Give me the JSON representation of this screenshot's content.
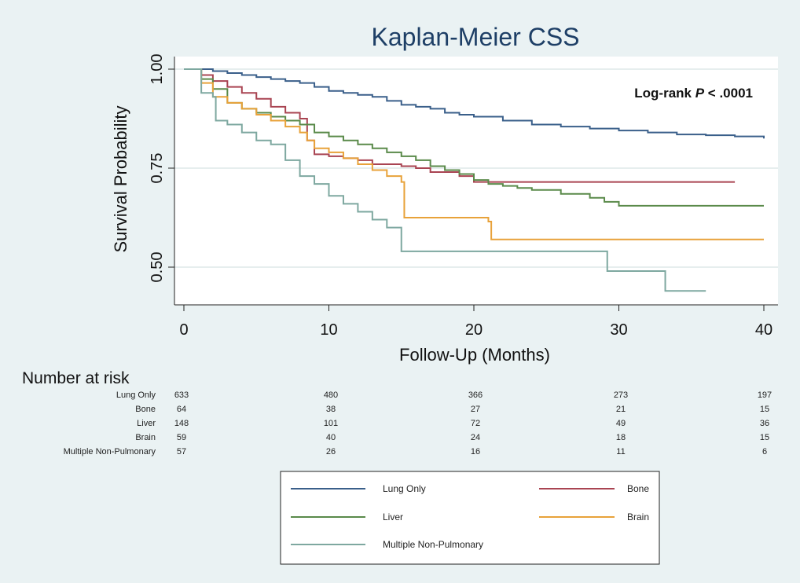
{
  "chart_data": {
    "type": "line",
    "title": "Kaplan-Meier CSS",
    "xlabel": "Follow-Up (Months)",
    "ylabel": "Survival Probability",
    "xlim": [
      0,
      40
    ],
    "ylim": [
      0.45,
      1.0
    ],
    "xticks": [
      "0",
      "10",
      "20",
      "30",
      "40"
    ],
    "yticks": [
      "0.50",
      "0.75",
      "1.00"
    ],
    "annotation": {
      "prefix": "Log-rank ",
      "italic": "P",
      "suffix": " < .0001"
    },
    "grid": "horizontal",
    "series": [
      {
        "name": "Lung Only",
        "color": "#3a5f8a",
        "points": [
          [
            0,
            1.0
          ],
          [
            1,
            1.0
          ],
          [
            2,
            0.995
          ],
          [
            3,
            0.99
          ],
          [
            4,
            0.985
          ],
          [
            5,
            0.98
          ],
          [
            6,
            0.975
          ],
          [
            7,
            0.97
          ],
          [
            8,
            0.965
          ],
          [
            9,
            0.955
          ],
          [
            10,
            0.945
          ],
          [
            11,
            0.94
          ],
          [
            12,
            0.935
          ],
          [
            13,
            0.93
          ],
          [
            14,
            0.92
          ],
          [
            15,
            0.91
          ],
          [
            16,
            0.905
          ],
          [
            17,
            0.9
          ],
          [
            18,
            0.89
          ],
          [
            19,
            0.885
          ],
          [
            20,
            0.88
          ],
          [
            22,
            0.87
          ],
          [
            24,
            0.86
          ],
          [
            26,
            0.855
          ],
          [
            28,
            0.85
          ],
          [
            30,
            0.845
          ],
          [
            32,
            0.84
          ],
          [
            34,
            0.835
          ],
          [
            36,
            0.833
          ],
          [
            38,
            0.83
          ],
          [
            39,
            0.83
          ],
          [
            40,
            0.825
          ]
        ]
      },
      {
        "name": "Bone",
        "color": "#a94452",
        "points": [
          [
            0,
            1.0
          ],
          [
            1,
            1.0
          ],
          [
            1.2,
            0.985
          ],
          [
            2,
            0.97
          ],
          [
            3,
            0.955
          ],
          [
            4,
            0.94
          ],
          [
            5,
            0.925
          ],
          [
            6,
            0.905
          ],
          [
            7,
            0.89
          ],
          [
            8,
            0.875
          ],
          [
            8.5,
            0.82
          ],
          [
            9,
            0.785
          ],
          [
            10,
            0.78
          ],
          [
            11,
            0.775
          ],
          [
            12,
            0.77
          ],
          [
            13,
            0.76
          ],
          [
            15,
            0.755
          ],
          [
            16,
            0.75
          ],
          [
            17,
            0.74
          ],
          [
            19,
            0.73
          ],
          [
            20,
            0.715
          ],
          [
            25,
            0.715
          ],
          [
            38,
            0.715
          ]
        ]
      },
      {
        "name": "Liver",
        "color": "#5a8a4a",
        "points": [
          [
            0,
            1.0
          ],
          [
            1,
            1.0
          ],
          [
            1.2,
            0.975
          ],
          [
            2,
            0.95
          ],
          [
            3,
            0.915
          ],
          [
            4,
            0.9
          ],
          [
            5,
            0.89
          ],
          [
            6,
            0.88
          ],
          [
            7,
            0.87
          ],
          [
            8,
            0.86
          ],
          [
            9,
            0.84
          ],
          [
            10,
            0.83
          ],
          [
            11,
            0.82
          ],
          [
            12,
            0.81
          ],
          [
            13,
            0.8
          ],
          [
            14,
            0.79
          ],
          [
            15,
            0.78
          ],
          [
            16,
            0.77
          ],
          [
            17,
            0.755
          ],
          [
            18,
            0.745
          ],
          [
            19,
            0.735
          ],
          [
            20,
            0.72
          ],
          [
            21,
            0.71
          ],
          [
            22,
            0.705
          ],
          [
            23,
            0.7
          ],
          [
            24,
            0.695
          ],
          [
            26,
            0.685
          ],
          [
            28,
            0.675
          ],
          [
            29,
            0.665
          ],
          [
            30,
            0.655
          ],
          [
            40,
            0.655
          ]
        ]
      },
      {
        "name": "Brain",
        "color": "#e8a23a",
        "points": [
          [
            0,
            1.0
          ],
          [
            1,
            1.0
          ],
          [
            1.2,
            0.965
          ],
          [
            2,
            0.93
          ],
          [
            3,
            0.915
          ],
          [
            4,
            0.9
          ],
          [
            5,
            0.885
          ],
          [
            6,
            0.87
          ],
          [
            7,
            0.855
          ],
          [
            8,
            0.84
          ],
          [
            8.5,
            0.82
          ],
          [
            9,
            0.8
          ],
          [
            10,
            0.79
          ],
          [
            11,
            0.775
          ],
          [
            12,
            0.76
          ],
          [
            13,
            0.745
          ],
          [
            14,
            0.73
          ],
          [
            15,
            0.715
          ],
          [
            15.2,
            0.625
          ],
          [
            20,
            0.625
          ],
          [
            21,
            0.615
          ],
          [
            21.2,
            0.57
          ],
          [
            30,
            0.57
          ],
          [
            40,
            0.57
          ]
        ]
      },
      {
        "name": "Multiple Non-Pulmonary",
        "color": "#7ea8a0",
        "points": [
          [
            0,
            1.0
          ],
          [
            1,
            1.0
          ],
          [
            1.2,
            0.94
          ],
          [
            2,
            0.93
          ],
          [
            2.2,
            0.87
          ],
          [
            3,
            0.86
          ],
          [
            4,
            0.84
          ],
          [
            5,
            0.82
          ],
          [
            6,
            0.81
          ],
          [
            7,
            0.77
          ],
          [
            8,
            0.73
          ],
          [
            9,
            0.71
          ],
          [
            10,
            0.68
          ],
          [
            11,
            0.66
          ],
          [
            12,
            0.64
          ],
          [
            13,
            0.62
          ],
          [
            14,
            0.6
          ],
          [
            15,
            0.54
          ],
          [
            22,
            0.54
          ],
          [
            29,
            0.54
          ],
          [
            29.2,
            0.49
          ],
          [
            33,
            0.49
          ],
          [
            33.2,
            0.44
          ],
          [
            36,
            0.44
          ]
        ]
      }
    ]
  },
  "risk_table": {
    "heading": "Number at risk",
    "times": [
      "0",
      "10",
      "20",
      "30",
      "40"
    ],
    "rows": [
      {
        "label": "Lung Only",
        "values": [
          "633",
          "480",
          "366",
          "273",
          "197"
        ]
      },
      {
        "label": "Bone",
        "values": [
          "64",
          "38",
          "27",
          "21",
          "15"
        ]
      },
      {
        "label": "Liver",
        "values": [
          "148",
          "101",
          "72",
          "49",
          "36"
        ]
      },
      {
        "label": "Brain",
        "values": [
          "59",
          "40",
          "24",
          "18",
          "15"
        ]
      },
      {
        "label": "Multiple Non-Pulmonary",
        "values": [
          "57",
          "26",
          "16",
          "11",
          "6"
        ]
      }
    ]
  },
  "legend": [
    {
      "label": "Lung Only",
      "color": "#3a5f8a"
    },
    {
      "label": "Bone",
      "color": "#a94452"
    },
    {
      "label": "Liver",
      "color": "#5a8a4a"
    },
    {
      "label": "Brain",
      "color": "#e8a23a"
    },
    {
      "label": "Multiple Non-Pulmonary",
      "color": "#7ea8a0"
    }
  ]
}
